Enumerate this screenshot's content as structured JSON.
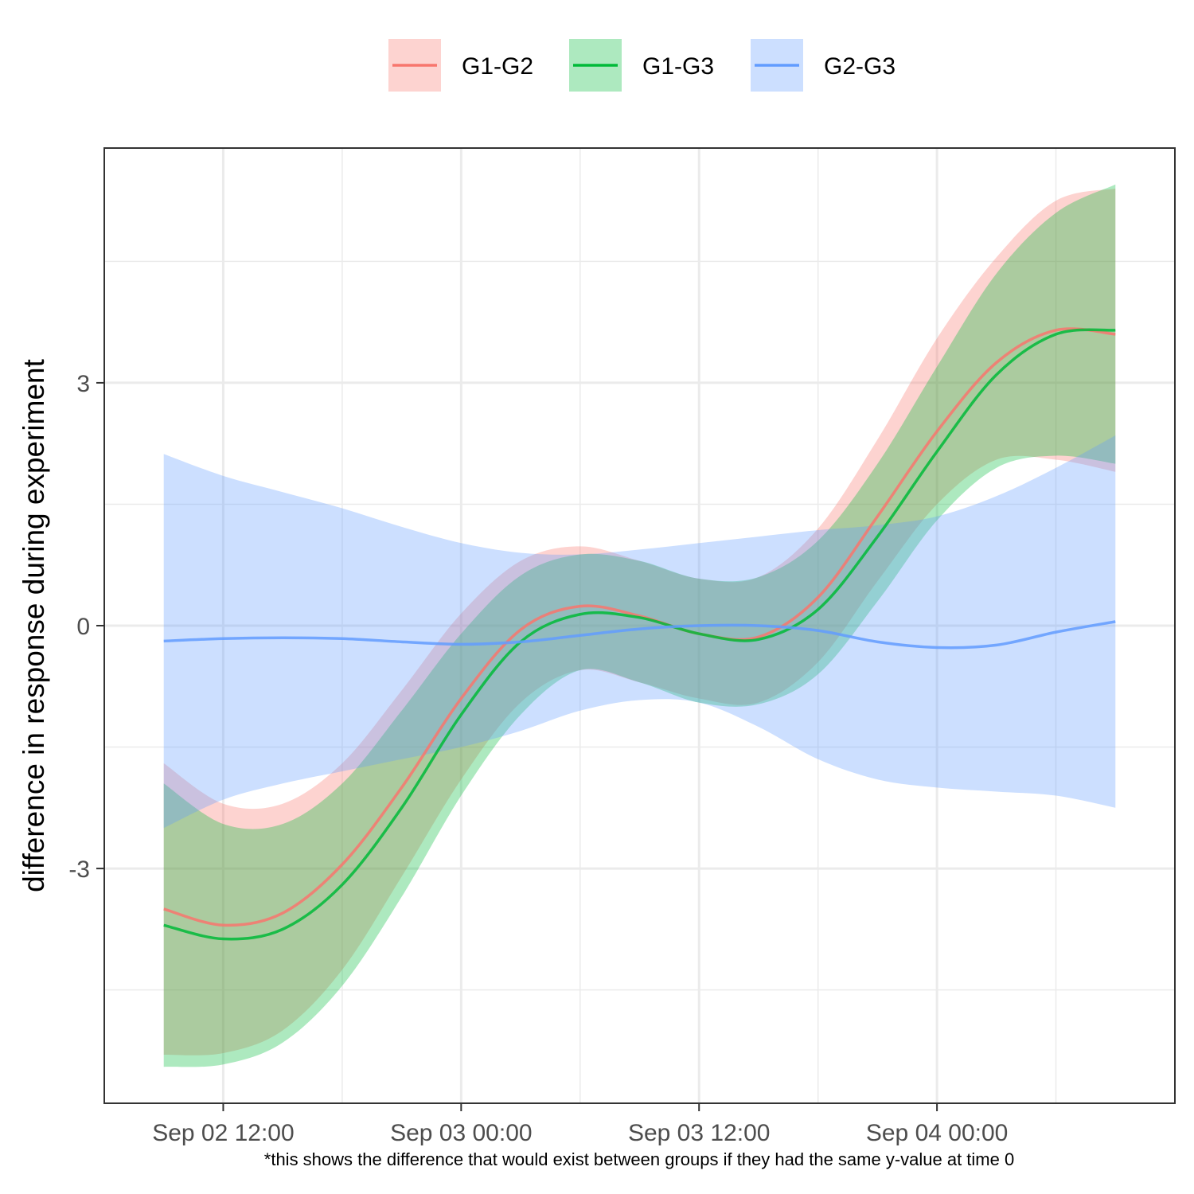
{
  "chart_data": {
    "type": "line",
    "title": "",
    "xlabel": "",
    "ylabel": "difference in response during experiment",
    "caption": "*this shows the difference that would exist between groups if they had the same y-value at time 0",
    "x_ticks": [
      "Sep 02 12:00",
      "Sep 03 00:00",
      "Sep 03 12:00",
      "Sep 04 00:00"
    ],
    "y_ticks": [
      "3",
      "0",
      "-3"
    ],
    "xlim": [
      "2023-09-02T06:00",
      "2023-09-04T12:00"
    ],
    "ylim": [
      -5.9,
      5.9
    ],
    "grid": true,
    "legend_position": "top",
    "legend": [
      "G1-G2",
      "G1-G3",
      "G2-G3"
    ],
    "series": [
      {
        "name": "G1-G2",
        "color": "#F8766D",
        "x": [
          "2023-09-02T09:00",
          "2023-09-02T12:00",
          "2023-09-02T15:00",
          "2023-09-02T18:00",
          "2023-09-02T21:00",
          "2023-09-03T00:00",
          "2023-09-03T03:00",
          "2023-09-03T06:00",
          "2023-09-03T09:00",
          "2023-09-03T12:00",
          "2023-09-03T15:00",
          "2023-09-03T18:00",
          "2023-09-03T21:00",
          "2023-09-04T00:00",
          "2023-09-04T03:00",
          "2023-09-04T06:00",
          "2023-09-04T09:00"
        ],
        "y": [
          -3.5,
          -3.7,
          -3.55,
          -2.95,
          -2.0,
          -0.9,
          -0.05,
          0.24,
          0.12,
          -0.1,
          -0.14,
          0.35,
          1.35,
          2.4,
          3.25,
          3.65,
          3.6
        ],
        "lower": [
          -5.3,
          -5.28,
          -5.0,
          -4.25,
          -3.1,
          -1.9,
          -0.95,
          -0.55,
          -0.7,
          -0.9,
          -0.95,
          -0.45,
          0.55,
          1.5,
          2.05,
          2.05,
          1.9
        ],
        "upper": [
          -1.7,
          -2.2,
          -2.2,
          -1.7,
          -0.8,
          0.15,
          0.8,
          0.98,
          0.8,
          0.58,
          0.6,
          1.2,
          2.3,
          3.55,
          4.55,
          5.25,
          5.4
        ]
      },
      {
        "name": "G1-G3",
        "color": "#00BA38",
        "x": [
          "2023-09-02T09:00",
          "2023-09-02T12:00",
          "2023-09-02T15:00",
          "2023-09-02T18:00",
          "2023-09-02T21:00",
          "2023-09-03T00:00",
          "2023-09-03T03:00",
          "2023-09-03T06:00",
          "2023-09-03T09:00",
          "2023-09-03T12:00",
          "2023-09-03T15:00",
          "2023-09-03T18:00",
          "2023-09-03T21:00",
          "2023-09-04T00:00",
          "2023-09-04T03:00",
          "2023-09-04T06:00",
          "2023-09-04T09:00"
        ],
        "y": [
          -3.7,
          -3.87,
          -3.75,
          -3.2,
          -2.25,
          -1.1,
          -0.2,
          0.14,
          0.1,
          -0.1,
          -0.17,
          0.2,
          1.1,
          2.15,
          3.1,
          3.6,
          3.65
        ],
        "lower": [
          -5.45,
          -5.42,
          -5.15,
          -4.45,
          -3.35,
          -2.1,
          -1.1,
          -0.55,
          -0.7,
          -0.95,
          -0.97,
          -0.6,
          0.3,
          1.3,
          1.95,
          2.1,
          2.0
        ],
        "upper": [
          -1.95,
          -2.45,
          -2.45,
          -1.95,
          -1.05,
          -0.1,
          0.62,
          0.88,
          0.8,
          0.58,
          0.6,
          1.05,
          2.0,
          3.2,
          4.35,
          5.1,
          5.45
        ]
      },
      {
        "name": "G2-G3",
        "color": "#619CFF",
        "x": [
          "2023-09-02T09:00",
          "2023-09-02T12:00",
          "2023-09-02T15:00",
          "2023-09-02T18:00",
          "2023-09-02T21:00",
          "2023-09-03T00:00",
          "2023-09-03T03:00",
          "2023-09-03T06:00",
          "2023-09-03T09:00",
          "2023-09-03T12:00",
          "2023-09-03T15:00",
          "2023-09-03T18:00",
          "2023-09-03T21:00",
          "2023-09-04T00:00",
          "2023-09-04T03:00",
          "2023-09-04T06:00",
          "2023-09-04T09:00"
        ],
        "y": [
          -0.19,
          -0.16,
          -0.15,
          -0.16,
          -0.2,
          -0.23,
          -0.2,
          -0.12,
          -0.04,
          0.0,
          0.0,
          -0.06,
          -0.2,
          -0.27,
          -0.24,
          -0.08,
          0.05
        ],
        "lower": [
          -2.5,
          -2.15,
          -1.95,
          -1.8,
          -1.65,
          -1.5,
          -1.3,
          -1.05,
          -0.92,
          -0.95,
          -1.25,
          -1.65,
          -1.9,
          -2.0,
          -2.05,
          -2.1,
          -2.25
        ],
        "upper": [
          2.12,
          1.85,
          1.65,
          1.45,
          1.22,
          1.02,
          0.9,
          0.88,
          0.94,
          1.02,
          1.1,
          1.18,
          1.24,
          1.35,
          1.6,
          1.95,
          2.35
        ]
      }
    ]
  }
}
